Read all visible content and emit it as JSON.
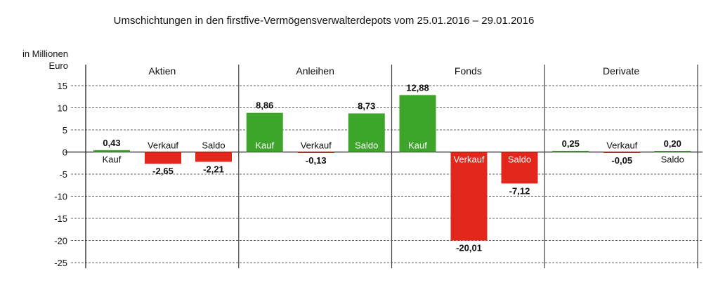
{
  "chart_data": {
    "type": "bar",
    "title": "Umschichtungen in den firstfive-Vermögensverwalterdepots vom 25.01.2016 – 29.01.2016",
    "ylabel": [
      "in Millionen",
      "Euro"
    ],
    "xlabel": "",
    "ylim": [
      -25,
      15
    ],
    "yticks": [
      15,
      10,
      5,
      0,
      -5,
      -10,
      -15,
      -20,
      -25
    ],
    "grid": true,
    "colors": {
      "positive": "#3ea52b",
      "negative": "#e3271c"
    },
    "groups": [
      {
        "name": "Aktien",
        "bars": [
          {
            "category": "Kauf",
            "value": 0.43,
            "label": "0,43"
          },
          {
            "category": "Verkauf",
            "value": -2.65,
            "label": "-2,65"
          },
          {
            "category": "Saldo",
            "value": -2.21,
            "label": "-2,21"
          }
        ]
      },
      {
        "name": "Anleihen",
        "bars": [
          {
            "category": "Kauf",
            "value": 8.86,
            "label": "8,86"
          },
          {
            "category": "Verkauf",
            "value": -0.13,
            "label": "-0,13"
          },
          {
            "category": "Saldo",
            "value": 8.73,
            "label": "8,73"
          }
        ]
      },
      {
        "name": "Fonds",
        "bars": [
          {
            "category": "Kauf",
            "value": 12.88,
            "label": "12,88"
          },
          {
            "category": "Verkauf",
            "value": -20.01,
            "label": "-20,01"
          },
          {
            "category": "Saldo",
            "value": -7.12,
            "label": "-7,12"
          }
        ]
      },
      {
        "name": "Derivate",
        "bars": [
          {
            "category": "",
            "value": 0.25,
            "label": "0,25"
          },
          {
            "category": "Verkauf",
            "value": -0.05,
            "label": "-0,05"
          },
          {
            "category": "Saldo",
            "value": 0.2,
            "label": "0,20"
          }
        ]
      }
    ]
  }
}
